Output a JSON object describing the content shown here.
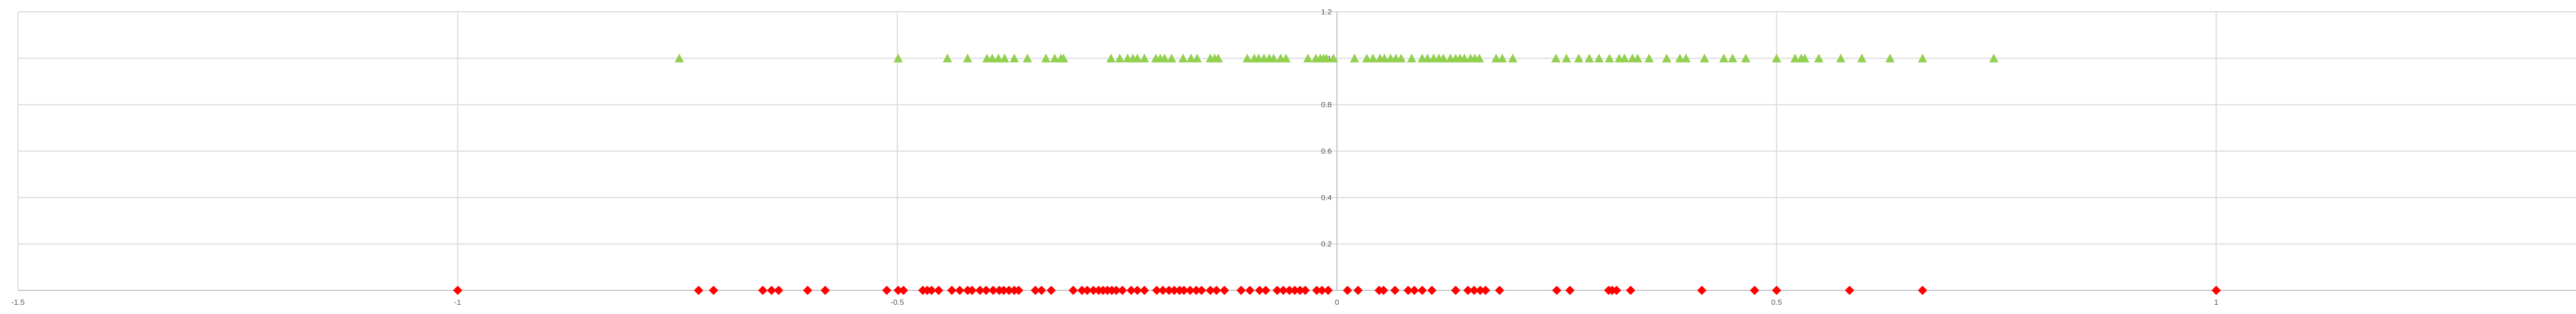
{
  "chart_data": {
    "type": "scatter",
    "title": "",
    "xlabel": "",
    "ylabel": "",
    "xlim": [
      -1.5,
      1.5
    ],
    "ylim": [
      0,
      1.2
    ],
    "x_ticks": [
      "-1.5",
      "-1",
      "-0.5",
      "0",
      "0.5",
      "1",
      "1.5"
    ],
    "y_ticks": [
      "0.2",
      "0.4",
      "0.6",
      "0.8",
      "1",
      "1.2"
    ],
    "grid": true,
    "series": [
      {
        "marker": "triangle",
        "color": "#92d050",
        "y": 1,
        "x": [
          -0.748,
          -0.499,
          -0.443,
          -0.42,
          -0.398,
          -0.392,
          -0.385,
          -0.378,
          -0.367,
          -0.352,
          -0.331,
          -0.321,
          -0.314,
          -0.311,
          -0.257,
          -0.247,
          -0.238,
          -0.232,
          -0.227,
          -0.219,
          -0.206,
          -0.201,
          -0.196,
          -0.188,
          -0.175,
          -0.166,
          -0.159,
          -0.144,
          -0.139,
          -0.135,
          -0.102,
          -0.094,
          -0.089,
          -0.083,
          -0.077,
          -0.072,
          -0.064,
          -0.058,
          -0.033,
          -0.024,
          -0.019,
          -0.015,
          -0.012,
          -0.004,
          0.02,
          0.034,
          0.041,
          0.049,
          0.054,
          0.061,
          0.067,
          0.073,
          0.085,
          0.097,
          0.103,
          0.11,
          0.116,
          0.121,
          0.129,
          0.135,
          0.14,
          0.145,
          0.152,
          0.157,
          0.162,
          0.181,
          0.188,
          0.2,
          0.249,
          0.261,
          0.275,
          0.287,
          0.298,
          0.31,
          0.321,
          0.327,
          0.336,
          0.342,
          0.355,
          0.375,
          0.39,
          0.397,
          0.418,
          0.44,
          0.45,
          0.465,
          0.5,
          0.521,
          0.528,
          0.532,
          0.548,
          0.573,
          0.597,
          0.629,
          0.666,
          0.747
        ]
      },
      {
        "marker": "diamond",
        "color": "#ff0000",
        "y": 0,
        "x": [
          -1,
          -0.726,
          -0.709,
          -0.653,
          -0.643,
          -0.635,
          -0.602,
          -0.582,
          -0.512,
          -0.499,
          -0.493,
          -0.471,
          -0.466,
          -0.461,
          -0.453,
          -0.438,
          -0.429,
          -0.42,
          -0.415,
          -0.406,
          -0.399,
          -0.391,
          -0.384,
          -0.379,
          -0.373,
          -0.367,
          -0.362,
          -0.343,
          -0.336,
          -0.325,
          -0.3,
          -0.29,
          -0.284,
          -0.277,
          -0.271,
          -0.266,
          -0.261,
          -0.256,
          -0.251,
          -0.244,
          -0.234,
          -0.227,
          -0.219,
          -0.205,
          -0.198,
          -0.191,
          -0.185,
          -0.179,
          -0.174,
          -0.167,
          -0.16,
          -0.154,
          -0.144,
          -0.137,
          -0.128,
          -0.109,
          -0.099,
          -0.088,
          -0.081,
          -0.068,
          -0.061,
          -0.054,
          -0.048,
          -0.042,
          -0.036,
          -0.023,
          -0.017,
          -0.01,
          0.012,
          0.024,
          0.048,
          0.053,
          0.066,
          0.081,
          0.088,
          0.097,
          0.108,
          0.135,
          0.149,
          0.156,
          0.163,
          0.169,
          0.185,
          0.25,
          0.265,
          0.309,
          0.313,
          0.318,
          0.334,
          0.415,
          0.475,
          0.5,
          0.583,
          0.666,
          1
        ]
      }
    ]
  }
}
